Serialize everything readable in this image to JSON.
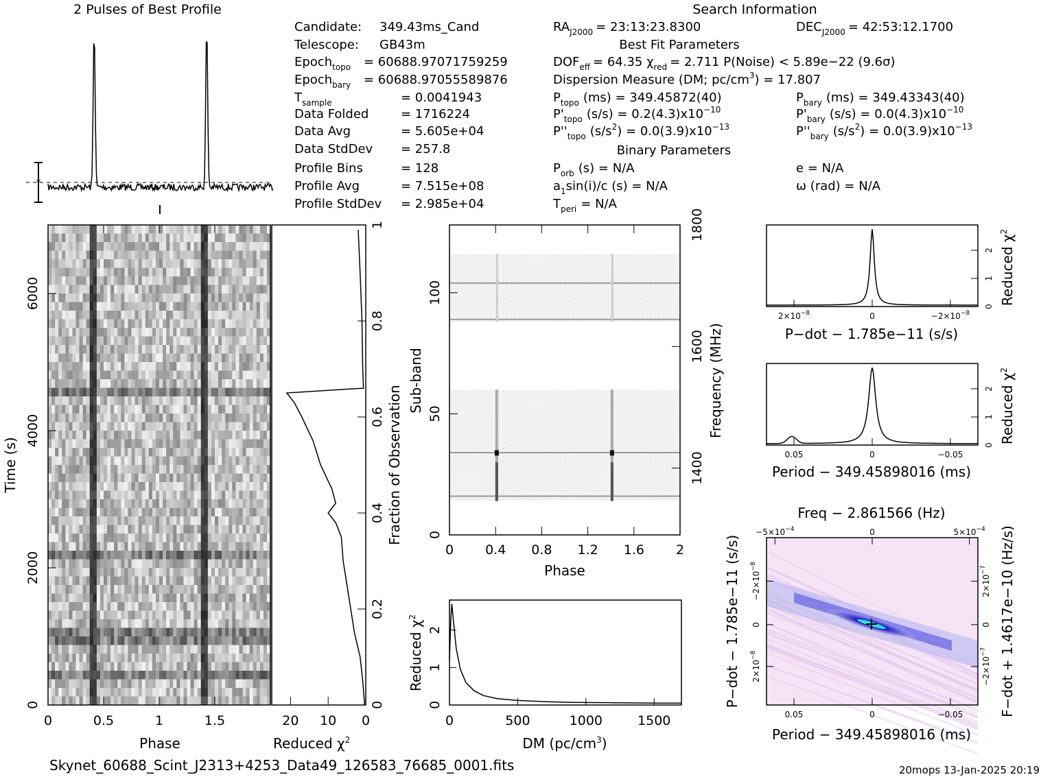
{
  "window": {
    "profile_title": "2 Pulses of Best Profile",
    "search_title": "Search Information",
    "best_fit_title": "Best Fit Parameters",
    "binary_title": "Binary Parameters",
    "filename": "Skynet_60688_Scint_J2313+4253_Data49_126583_76685_0001.fits",
    "stamp": "20mops 13-Jan-2025 20:19"
  },
  "info_left": [
    {
      "label": "Candidate:",
      "value": "349.43ms_Cand"
    },
    {
      "label": "Telescope:",
      "value": "GB43m"
    },
    {
      "label": "Epoch",
      "sub": "topo",
      "value": "= 60688.97071759259"
    },
    {
      "label": "Epoch",
      "sub": "bary",
      "value": "= 60688.97055589876"
    },
    {
      "label": "T",
      "sub": "sample",
      "value": "=   0.0041943"
    },
    {
      "label": "Data Folded",
      "value": "=   1716224"
    },
    {
      "label": "Data Avg",
      "value": "=   5.605e+04"
    },
    {
      "label": "Data StdDev",
      "value": "=   257.8"
    },
    {
      "label": "Profile Bins",
      "value": "=   128"
    },
    {
      "label": "Profile Avg",
      "value": "=   7.515e+08"
    },
    {
      "label": "Profile StdDev",
      "value": "=   2.985e+04"
    }
  ],
  "info_mid": {
    "ra": "RA",
    "ra_sub": "J2000",
    "ra_val": "= 23:13:23.8300",
    "dof": "DOF",
    "dof_sub": "eff",
    "dof_val": "= 64.35   χ",
    "chi_sub": "red",
    "chi_val": "= 2.711   P(Noise) < 5.89e−22   (9.6σ)",
    "dm_line": "Dispersion Measure (DM; pc/cm",
    "dm_val": ") = 17.807",
    "ptopo": "P",
    "ptopo_sub": "topo",
    "ptopo_val": "(ms) =   349.45872(40)",
    "pdtopo": "P'",
    "pdtopo_val": "(s/s) =   0.2(4.3)x10",
    "pdtopo_exp": "−10",
    "pddtopo": "P''",
    "pddtopo_val": "(s/s",
    "pddtopo_val2": ") = 0.0(3.9)x10",
    "pddtopo_exp": "−13",
    "porb": "P",
    "porb_sub": "orb",
    "porb_val": "(s) = N/A",
    "a1": "a",
    "a1_sub": "1",
    "a1_val": "sin(i)/c (s) = N/A",
    "tperi": "T",
    "tperi_sub": "peri",
    "tperi_val": "= N/A"
  },
  "info_right": {
    "dec": "DEC",
    "dec_sub": "J2000",
    "dec_val": "= 42:53:12.1700",
    "pbary": "P",
    "pbary_sub": "bary",
    "pbary_val": "(ms) =   349.43343(40)",
    "pdbary": "P'",
    "pdbary_val": "(s/s) = 0.0(4.3)x10",
    "pdbary_exp": "−10",
    "pddbary": "P''",
    "pddbary_val": "(s/s",
    "pddbary_val2": ") = 0.0(3.9)x10",
    "pddbary_exp": "−13",
    "e_val": "e = N/A",
    "w_val": "ω (rad) = N/A"
  },
  "colors": {
    "ink": "#000000",
    "bg": "#ffffff",
    "ppdot_blue": "#2020e0",
    "ppdot_pink": "#f4dcf4",
    "ppdot_cyan": "#30e0e0"
  },
  "chart_data": [
    {
      "id": "pulse_profile",
      "type": "line",
      "title": "2 Pulses of Best Profile",
      "x": {
        "range": [
          0,
          2
        ]
      },
      "peaks_phase": [
        0.41,
        1.41
      ],
      "peak_height_rel": 1.0,
      "baseline_rel": 0.0,
      "errorbar": true
    },
    {
      "id": "time_phase",
      "type": "heatmap",
      "xlabel": "Phase",
      "ylabel": "Time (s)",
      "xticks": [
        "0",
        "0.5",
        "1",
        "1.5"
      ],
      "yticks": [
        "0",
        "2000",
        "4000",
        "6000"
      ],
      "xlim": [
        0,
        2
      ],
      "ylim": [
        0,
        7000
      ],
      "pulse_phase": [
        0.41,
        1.41
      ],
      "dark_rows_time": [
        400,
        1000,
        2200,
        4600
      ]
    },
    {
      "id": "chi_vs_fraction",
      "type": "line",
      "xlabel": "Reduced χ",
      "xticks": [
        "20",
        "10",
        "0"
      ],
      "xlim": [
        25,
        0
      ],
      "ylabel": "Fraction of Observation",
      "yticks": [
        "0",
        "0.2",
        "0.4",
        "0.6",
        "0.8",
        "1"
      ],
      "ylim": [
        0,
        1
      ],
      "points": [
        [
          0.3,
          0.0
        ],
        [
          0.8,
          0.05
        ],
        [
          1.5,
          0.1
        ],
        [
          3,
          0.15
        ],
        [
          4,
          0.2
        ],
        [
          5,
          0.25
        ],
        [
          6,
          0.3
        ],
        [
          6.5,
          0.35
        ],
        [
          8,
          0.38
        ],
        [
          10,
          0.4
        ],
        [
          8,
          0.42
        ],
        [
          9,
          0.45
        ],
        [
          12,
          0.5
        ],
        [
          14,
          0.55
        ],
        [
          17,
          0.6
        ],
        [
          19,
          0.63
        ],
        [
          21,
          0.65
        ],
        [
          0.6,
          0.66
        ],
        [
          0.8,
          0.7
        ],
        [
          1,
          0.8
        ],
        [
          1.5,
          0.9
        ],
        [
          2,
          0.99
        ]
      ]
    },
    {
      "id": "subband_phase",
      "type": "heatmap",
      "xlabel": "Phase",
      "ylabel": "Sub-band",
      "xticks": [
        "0",
        "0.4",
        "0.8",
        "1.2",
        "1.6",
        "2"
      ],
      "yticks": [
        "0",
        "50",
        "100"
      ],
      "right_label": "Frequency (MHz)",
      "right_ticks": [
        "1400",
        "1600",
        "1800"
      ],
      "xlim": [
        0,
        2
      ],
      "ylim": [
        0,
        128
      ],
      "filled_bands": [
        [
          14,
          60
        ],
        [
          88,
          116
        ]
      ],
      "bright_lines": [
        16,
        34,
        89,
        104
      ]
    },
    {
      "id": "chi_vs_dm",
      "type": "line",
      "xlabel": "DM (pc/cm³)",
      "ylabel": "Reduced χ",
      "xticks": [
        "0",
        "500",
        "1000",
        "1500"
      ],
      "yticks": [
        "0",
        "1",
        "2"
      ],
      "xlim": [
        0,
        1700
      ],
      "ylim": [
        0,
        2.8
      ],
      "x": [
        0,
        10,
        17,
        30,
        50,
        80,
        120,
        180,
        250,
        350,
        500,
        700,
        900,
        1200,
        1500,
        1700
      ],
      "y": [
        1.2,
        2.3,
        2.7,
        2.2,
        1.5,
        0.95,
        0.6,
        0.38,
        0.25,
        0.17,
        0.12,
        0.09,
        0.07,
        0.06,
        0.05,
        0.05
      ]
    },
    {
      "id": "chi_vs_pdot",
      "type": "line",
      "xlabel": "P−dot − 1.785e−11 (s/s)",
      "ylabel": "Reduced χ",
      "xticks": [
        "2×10",
        "0",
        "−2×10"
      ],
      "xtick_exp": "−8",
      "yticks": [
        "0",
        "1",
        "2"
      ],
      "ylim": [
        0,
        2.9
      ]
    },
    {
      "id": "chi_vs_period",
      "type": "line",
      "xlabel": "Period − 349.45898016 (ms)",
      "ylabel": "Reduced χ",
      "xticks": [
        "0.05",
        "0",
        "−0.05"
      ],
      "yticks": [
        "0",
        "1",
        "2"
      ],
      "ylim": [
        0,
        2.9
      ]
    },
    {
      "id": "ppdot",
      "type": "heatmap",
      "title": "Freq − 2.861566 (Hz)",
      "xlabel": "Period − 349.45898016 (ms)",
      "ylabel": "P−dot − 1.785e−11 (s/s)",
      "right_label": "F−dot + 1.4617e−10 (Hz/s)",
      "xticks": [
        "0.05",
        "0",
        "−0.05"
      ],
      "top_ticks": [
        "−5×10",
        "0",
        "5×10"
      ],
      "top_exp": "−4",
      "yticks": [
        "2×10",
        "0",
        "−2×10"
      ],
      "ytick_exp": "−8",
      "right_ticks": [
        "−2×10",
        "0",
        "2×10"
      ],
      "right_exp": "−7"
    }
  ]
}
